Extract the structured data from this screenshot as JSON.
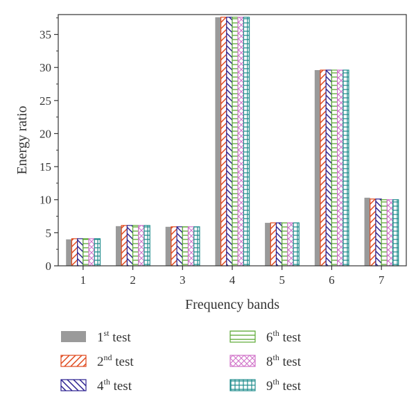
{
  "chart_data": {
    "type": "bar",
    "xlabel": "Frequency bands",
    "ylabel": "Energy ratio",
    "ylim": [
      0,
      38
    ],
    "yticks": [
      0,
      5,
      10,
      15,
      20,
      25,
      30,
      35
    ],
    "categories": [
      "1",
      "2",
      "3",
      "4",
      "5",
      "6",
      "7"
    ],
    "grid": false,
    "legend_position": "bottom",
    "series": [
      {
        "name": "1st test",
        "name_base": "1",
        "name_sup": "st",
        "name_suffix": " test",
        "pattern": "solid",
        "color": "#9a9a9a",
        "values": [
          4.0,
          6.0,
          5.9,
          37.6,
          6.5,
          29.6,
          10.3
        ]
      },
      {
        "name": "2nd test",
        "name_base": "2",
        "name_sup": "nd",
        "name_suffix": " test",
        "pattern": "diag-forward",
        "color": "#e0471a",
        "values": [
          4.1,
          6.1,
          5.9,
          37.6,
          6.5,
          29.6,
          10.1
        ]
      },
      {
        "name": "4th test",
        "name_base": "4",
        "name_sup": "th",
        "name_suffix": " test",
        "pattern": "diag-back",
        "color": "#2a1f8f",
        "values": [
          4.1,
          6.1,
          5.9,
          37.6,
          6.5,
          29.6,
          10.1
        ]
      },
      {
        "name": "6th test",
        "name_base": "6",
        "name_sup": "th",
        "name_suffix": " test",
        "pattern": "horizontal",
        "color": "#5aa832",
        "values": [
          4.1,
          6.1,
          5.9,
          37.6,
          6.5,
          29.6,
          10.0
        ]
      },
      {
        "name": "8th test",
        "name_base": "8",
        "name_sup": "th",
        "name_suffix": " test",
        "pattern": "crosshatch",
        "color": "#d070c8",
        "values": [
          4.1,
          6.1,
          5.9,
          37.6,
          6.5,
          29.6,
          10.0
        ]
      },
      {
        "name": "9th test",
        "name_base": "9",
        "name_sup": "th",
        "name_suffix": " test",
        "pattern": "grid",
        "color": "#1e8c8c",
        "values": [
          4.1,
          6.1,
          5.9,
          37.6,
          6.5,
          29.6,
          10.0
        ]
      }
    ]
  }
}
